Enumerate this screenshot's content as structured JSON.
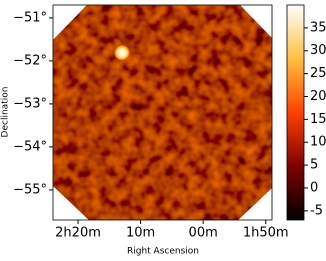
{
  "chart_data": {
    "type": "skymap",
    "xlabel": "Right Ascension",
    "ylabel": "Declination",
    "xlim": [
      36.0,
      27.25
    ],
    "ylim": [
      -55.7,
      -50.7
    ],
    "xticks": [
      {
        "value": 35,
        "label": "2h20m"
      },
      {
        "value": 32.5,
        "label": "10m"
      },
      {
        "value": 30,
        "label": "00m"
      },
      {
        "value": 27.5,
        "label": "1h50m"
      }
    ],
    "yticks": [
      {
        "value": -51,
        "label": "−51°"
      },
      {
        "value": -52,
        "label": "−52°"
      },
      {
        "value": -53,
        "label": "−53°"
      },
      {
        "value": -54,
        "label": "−54°"
      },
      {
        "value": -55,
        "label": "−55°"
      }
    ],
    "clim": [
      -7,
      40
    ],
    "cticks": [
      -5,
      0,
      5,
      10,
      15,
      20,
      25,
      30,
      35
    ],
    "sources": [
      {
        "ra": 33.24,
        "dec": -51.81,
        "value": 38
      }
    ]
  }
}
